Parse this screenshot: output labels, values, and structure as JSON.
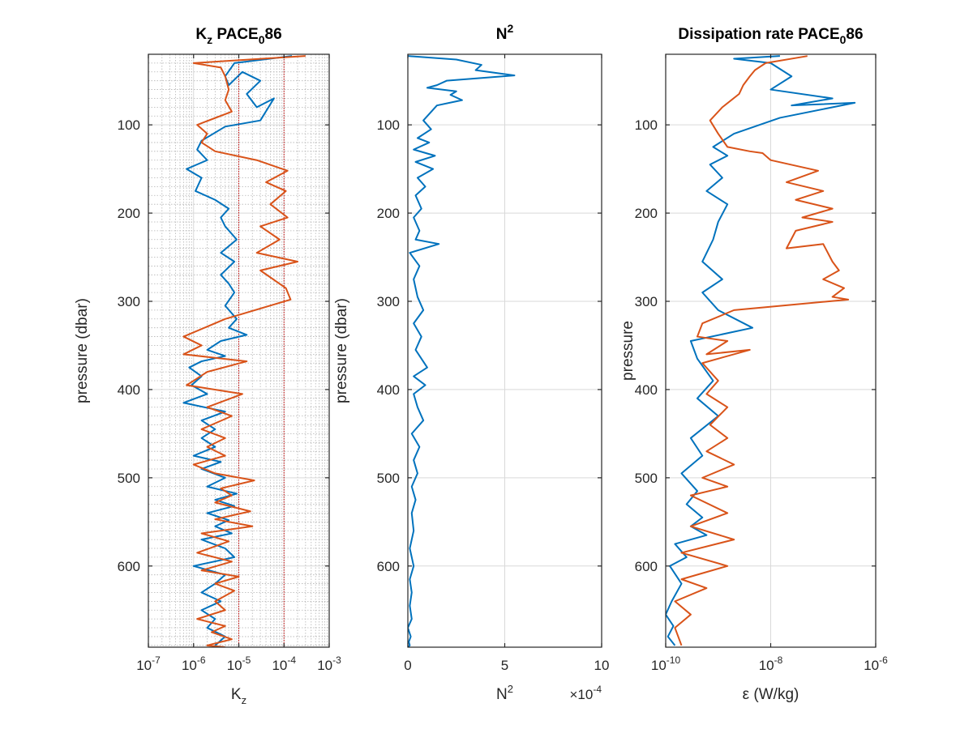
{
  "colors": {
    "series1": "#0072BD",
    "series2": "#D95319",
    "grid": "#d9d9d9",
    "minor_grid": "#b3b3b3",
    "ref_line": "#c00000",
    "axis": "#262626"
  },
  "chart_data": [
    {
      "type": "line",
      "title_parts": {
        "main": "K",
        "sub": "z",
        "mid": " PACE",
        "sub2": "0",
        "tail": "86"
      },
      "xlabel_parts": {
        "main": "K",
        "sub": "z"
      },
      "ylabel": "pressure (dbar)",
      "xscale": "log",
      "xlim": [
        1e-07,
        0.001
      ],
      "ylim": [
        20,
        692
      ],
      "y_reversed": true,
      "grid": "on (major and minor)",
      "xticks": [
        {
          "base": "10",
          "exp": "-7",
          "value": 1e-07
        },
        {
          "base": "10",
          "exp": "-6",
          "value": 1e-06
        },
        {
          "base": "10",
          "exp": "-5",
          "value": 1e-05
        },
        {
          "base": "10",
          "exp": "-4",
          "value": 0.0001
        },
        {
          "base": "10",
          "exp": "-3",
          "value": 0.001
        }
      ],
      "yticks": [
        {
          "label": "100",
          "value": 100
        },
        {
          "label": "200",
          "value": 200
        },
        {
          "label": "300",
          "value": 300
        },
        {
          "label": "400",
          "value": 400
        },
        {
          "label": "500",
          "value": 500
        },
        {
          "label": "600",
          "value": 600
        }
      ],
      "reference_lines_x": [
        1e-05,
        0.0001
      ],
      "series": [
        {
          "color": "#0072BD",
          "x": [
            0.00015,
            8e-06,
            5e-06,
            6e-06,
            1.2e-05,
            3e-05,
            1.5e-05,
            2.5e-05,
            6e-05,
            3e-05,
            5e-06,
            1.5e-06,
            1.2e-06,
            2e-06,
            7e-07,
            1.5e-06,
            1.1e-06,
            3e-06,
            6e-06,
            4e-06,
            5e-06,
            9e-06,
            4e-06,
            8e-06,
            4e-06,
            6e-06,
            8e-06,
            5e-06,
            9e-06,
            6e-06,
            1.5e-05,
            4e-06,
            2e-06,
            5e-06,
            1.5e-06,
            8e-07,
            1.5e-06,
            9e-07,
            2e-06,
            6e-07,
            5e-06,
            1.5e-06,
            3e-06,
            1.5e-06,
            3e-06,
            1e-06,
            4e-06,
            1.5e-06,
            5e-06,
            2e-06,
            9e-06,
            3e-06,
            8e-06,
            2e-06,
            6e-06,
            3e-06,
            7e-06,
            1.5e-06,
            5e-06,
            8e-06,
            1e-06,
            5e-06,
            3e-06,
            1.5e-06,
            4e-06,
            1.5e-06,
            3e-06,
            2e-06,
            5e-06,
            3e-06
          ],
          "y": [
            22,
            30,
            45,
            55,
            40,
            50,
            65,
            80,
            70,
            95,
            102,
            118,
            128,
            140,
            150,
            160,
            175,
            185,
            195,
            205,
            215,
            230,
            245,
            255,
            270,
            280,
            290,
            305,
            320,
            330,
            338,
            345,
            355,
            362,
            368,
            375,
            385,
            395,
            405,
            415,
            425,
            435,
            445,
            455,
            465,
            475,
            482,
            490,
            500,
            510,
            518,
            525,
            532,
            540,
            548,
            555,
            563,
            570,
            580,
            590,
            600,
            610,
            620,
            630,
            640,
            650,
            660,
            670,
            680,
            690
          ]
        },
        {
          "color": "#D95319",
          "x": [
            0.0003,
            1e-06,
            4e-06,
            5e-06,
            6e-06,
            5e-06,
            7e-06,
            1.2e-06,
            2e-06,
            1.5e-06,
            3e-06,
            2.5e-05,
            0.00012,
            4e-05,
            0.00011,
            5e-05,
            0.00012,
            3e-05,
            8e-05,
            2.5e-05,
            0.0002,
            3e-05,
            0.00011,
            0.00014,
            5e-06,
            6e-07,
            1.5e-06,
            6e-07,
            1.5e-05,
            2e-06,
            1e-06,
            7e-07,
            1.2e-05,
            2e-06,
            7e-06,
            1.5e-06,
            5e-06,
            2e-06,
            5e-06,
            1e-06,
            3e-06,
            2.2e-05,
            4e-06,
            7e-06,
            3e-06,
            1.8e-05,
            3e-06,
            2e-05,
            1.5e-06,
            6e-06,
            1.2e-06,
            7e-06,
            1.5e-06,
            1e-05,
            3e-06,
            8e-06,
            3e-06,
            5e-06,
            1.2e-06,
            5e-06,
            2.5e-06,
            7e-06,
            2e-06,
            5e-06
          ],
          "y": [
            22,
            30,
            35,
            45,
            60,
            72,
            85,
            100,
            110,
            120,
            130,
            140,
            152,
            165,
            175,
            190,
            205,
            215,
            230,
            245,
            255,
            265,
            285,
            298,
            320,
            340,
            350,
            360,
            368,
            380,
            390,
            395,
            405,
            420,
            430,
            445,
            455,
            465,
            475,
            485,
            495,
            503,
            512,
            520,
            528,
            538,
            547,
            555,
            563,
            572,
            585,
            595,
            605,
            612,
            620,
            628,
            640,
            650,
            660,
            668,
            675,
            683,
            690,
            692
          ]
        }
      ]
    },
    {
      "type": "line",
      "title_parts": {
        "main": "N",
        "sup": "2"
      },
      "xlabel_parts": {
        "main": "N",
        "sup": "2"
      },
      "x_multiplier": {
        "prefix": "×10",
        "exp": "-4"
      },
      "ylabel": "pressure (dbar)",
      "xscale": "linear",
      "xlim": [
        0,
        10
      ],
      "ylim": [
        20,
        692
      ],
      "y_reversed": true,
      "grid": "on",
      "xticks": [
        {
          "label": "0",
          "value": 0
        },
        {
          "label": "5",
          "value": 5
        },
        {
          "label": "10",
          "value": 10
        }
      ],
      "yticks": [
        {
          "label": "100",
          "value": 100
        },
        {
          "label": "200",
          "value": 200
        },
        {
          "label": "300",
          "value": 300
        },
        {
          "label": "400",
          "value": 400
        },
        {
          "label": "500",
          "value": 500
        },
        {
          "label": "600",
          "value": 600
        }
      ],
      "series": [
        {
          "color": "#0072BD",
          "x": [
            0.0,
            2.5,
            3.8,
            3.5,
            5.5,
            2.0,
            1.5,
            1.0,
            2.5,
            2.2,
            2.8,
            1.5,
            0.8,
            1.2,
            0.5,
            1.1,
            0.3,
            1.4,
            0.4,
            1.3,
            0.5,
            0.9,
            0.4,
            0.7,
            0.3,
            0.6,
            0.4,
            1.6,
            0.1,
            0.6,
            0.3,
            0.5,
            0.8,
            0.3,
            0.7,
            0.4,
            1.0,
            0.3,
            0.9,
            0.3,
            0.5,
            0.8,
            0.2,
            0.6,
            0.3,
            0.5,
            0.2,
            0.4,
            0.2,
            0.3,
            0.1,
            0.3,
            0.1,
            0.2,
            0.1,
            0.2,
            0.0,
            0.15,
            0.05,
            0.1,
            0.0
          ],
          "y": [
            22,
            26,
            32,
            38,
            44,
            50,
            55,
            58,
            62,
            66,
            72,
            78,
            95,
            105,
            115,
            120,
            128,
            135,
            142,
            150,
            160,
            170,
            180,
            195,
            205,
            220,
            230,
            235,
            245,
            260,
            275,
            295,
            310,
            325,
            340,
            355,
            375,
            385,
            395,
            405,
            420,
            435,
            450,
            465,
            480,
            495,
            510,
            525,
            540,
            560,
            580,
            600,
            615,
            630,
            645,
            660,
            670,
            680,
            686,
            690,
            692
          ]
        }
      ]
    },
    {
      "type": "line",
      "title_parts": {
        "main": "Dissipation rate PACE",
        "sub": "0",
        "tail": "86"
      },
      "xlabel": "ε (W/kg)",
      "ylabel": "pressure",
      "xscale": "log",
      "xlim": [
        1e-10,
        1e-06
      ],
      "ylim": [
        20,
        692
      ],
      "y_reversed": true,
      "grid": "on",
      "xticks": [
        {
          "base": "10",
          "exp": "-10",
          "value": 1e-10
        },
        {
          "base": "10",
          "exp": "-8",
          "value": 1e-08
        },
        {
          "base": "10",
          "exp": "-6",
          "value": 1e-06
        }
      ],
      "yticks": [
        {
          "label": "100",
          "value": 100
        },
        {
          "label": "200",
          "value": 200
        },
        {
          "label": "300",
          "value": 300
        },
        {
          "label": "400",
          "value": 400
        },
        {
          "label": "500",
          "value": 500
        },
        {
          "label": "600",
          "value": 600
        }
      ],
      "series": [
        {
          "color": "#0072BD",
          "x": [
            1.5e-08,
            2e-09,
            1e-08,
            2.5e-08,
            1e-08,
            1.5e-07,
            2.5e-08,
            4e-07,
            1.5e-08,
            2e-09,
            8e-10,
            1.5e-09,
            7e-10,
            1.2e-09,
            6e-10,
            1.5e-09,
            1e-09,
            8e-10,
            5e-10,
            1.2e-09,
            5e-10,
            1e-09,
            4.5e-09,
            3e-10,
            4e-10,
            8e-10,
            4e-10,
            1e-09,
            3e-10,
            5e-10,
            2e-10,
            4e-10,
            2.5e-10,
            5e-10,
            3e-10,
            6e-10,
            1.5e-10,
            2.5e-10,
            1.2e-10,
            2e-10,
            1.3e-10,
            1e-10,
            1.4e-10,
            1.1e-10,
            1.5e-10
          ],
          "y": [
            22,
            25,
            30,
            45,
            60,
            70,
            78,
            75,
            92,
            110,
            125,
            135,
            145,
            160,
            175,
            190,
            210,
            230,
            255,
            275,
            290,
            310,
            330,
            345,
            365,
            390,
            410,
            430,
            455,
            475,
            495,
            515,
            530,
            545,
            555,
            565,
            575,
            590,
            600,
            620,
            640,
            655,
            668,
            680,
            690
          ]
        },
        {
          "color": "#D95319",
          "x": [
            5e-08,
            8e-09,
            5e-09,
            4e-09,
            3e-09,
            2.5e-09,
            1.2e-09,
            7e-10,
            1e-09,
            1.5e-09,
            4e-09,
            7e-09,
            1e-08,
            4e-08,
            8e-08,
            2e-08,
            1e-07,
            3e-08,
            1.5e-07,
            4e-08,
            1.5e-07,
            3e-08,
            2e-08,
            1e-07,
            1.5e-07,
            2e-07,
            1e-07,
            2.5e-07,
            1.5e-07,
            3e-07,
            2e-09,
            5e-10,
            4e-10,
            1.5e-09,
            6e-10,
            4e-09,
            5e-10,
            1e-09,
            6e-10,
            1.5e-09,
            7e-10,
            1.5e-09,
            6e-10,
            2e-09,
            5e-10,
            1.5e-09,
            3e-10,
            1.5e-09,
            3e-10,
            2e-09,
            2e-10,
            1.5e-09,
            2e-10,
            6e-10,
            1.5e-10,
            3e-10,
            1.5e-10,
            2e-10
          ],
          "y": [
            22,
            30,
            38,
            45,
            55,
            65,
            80,
            95,
            110,
            125,
            130,
            132,
            140,
            148,
            152,
            165,
            175,
            185,
            195,
            205,
            210,
            220,
            240,
            235,
            255,
            265,
            275,
            285,
            295,
            298,
            310,
            325,
            340,
            345,
            360,
            355,
            370,
            390,
            405,
            420,
            440,
            455,
            470,
            485,
            500,
            510,
            520,
            540,
            555,
            570,
            585,
            600,
            615,
            625,
            640,
            655,
            670,
            690
          ]
        }
      ]
    }
  ]
}
